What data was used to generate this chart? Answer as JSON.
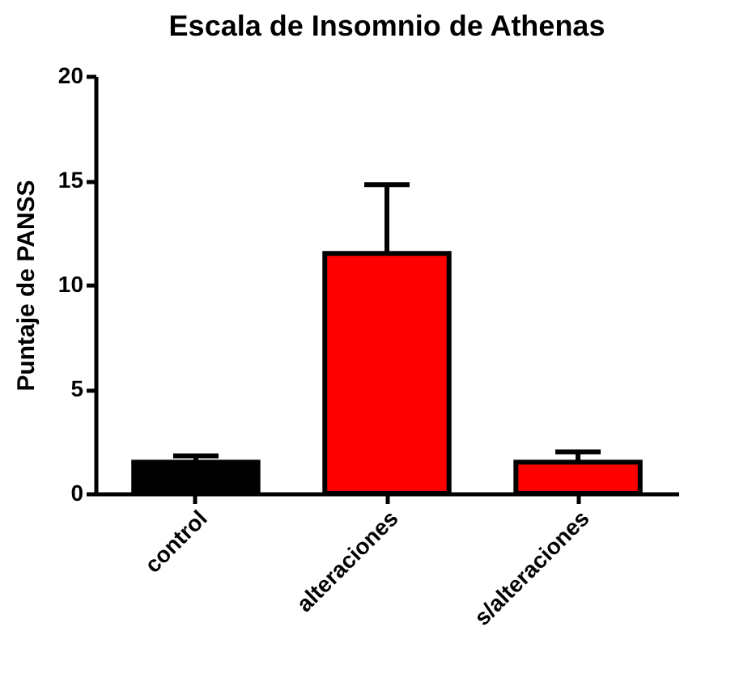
{
  "chart_data": {
    "type": "bar",
    "title": "Escala de Insomnio de Athenas",
    "ylabel": "Puntaje de PANSS",
    "categories": [
      "control",
      "alteraciones",
      "s/alteraciones"
    ],
    "values": [
      1.5,
      11.5,
      1.5
    ],
    "colors": [
      "#000000",
      "#ff0000",
      "#ff0000"
    ],
    "errors": [
      [
        1.5,
        1.8
      ],
      [
        11.5,
        14.8
      ],
      [
        1.5,
        2.0
      ]
    ],
    "ylim": [
      0,
      20
    ],
    "yticks": [
      0,
      5,
      10,
      15,
      20
    ],
    "grid": false
  }
}
